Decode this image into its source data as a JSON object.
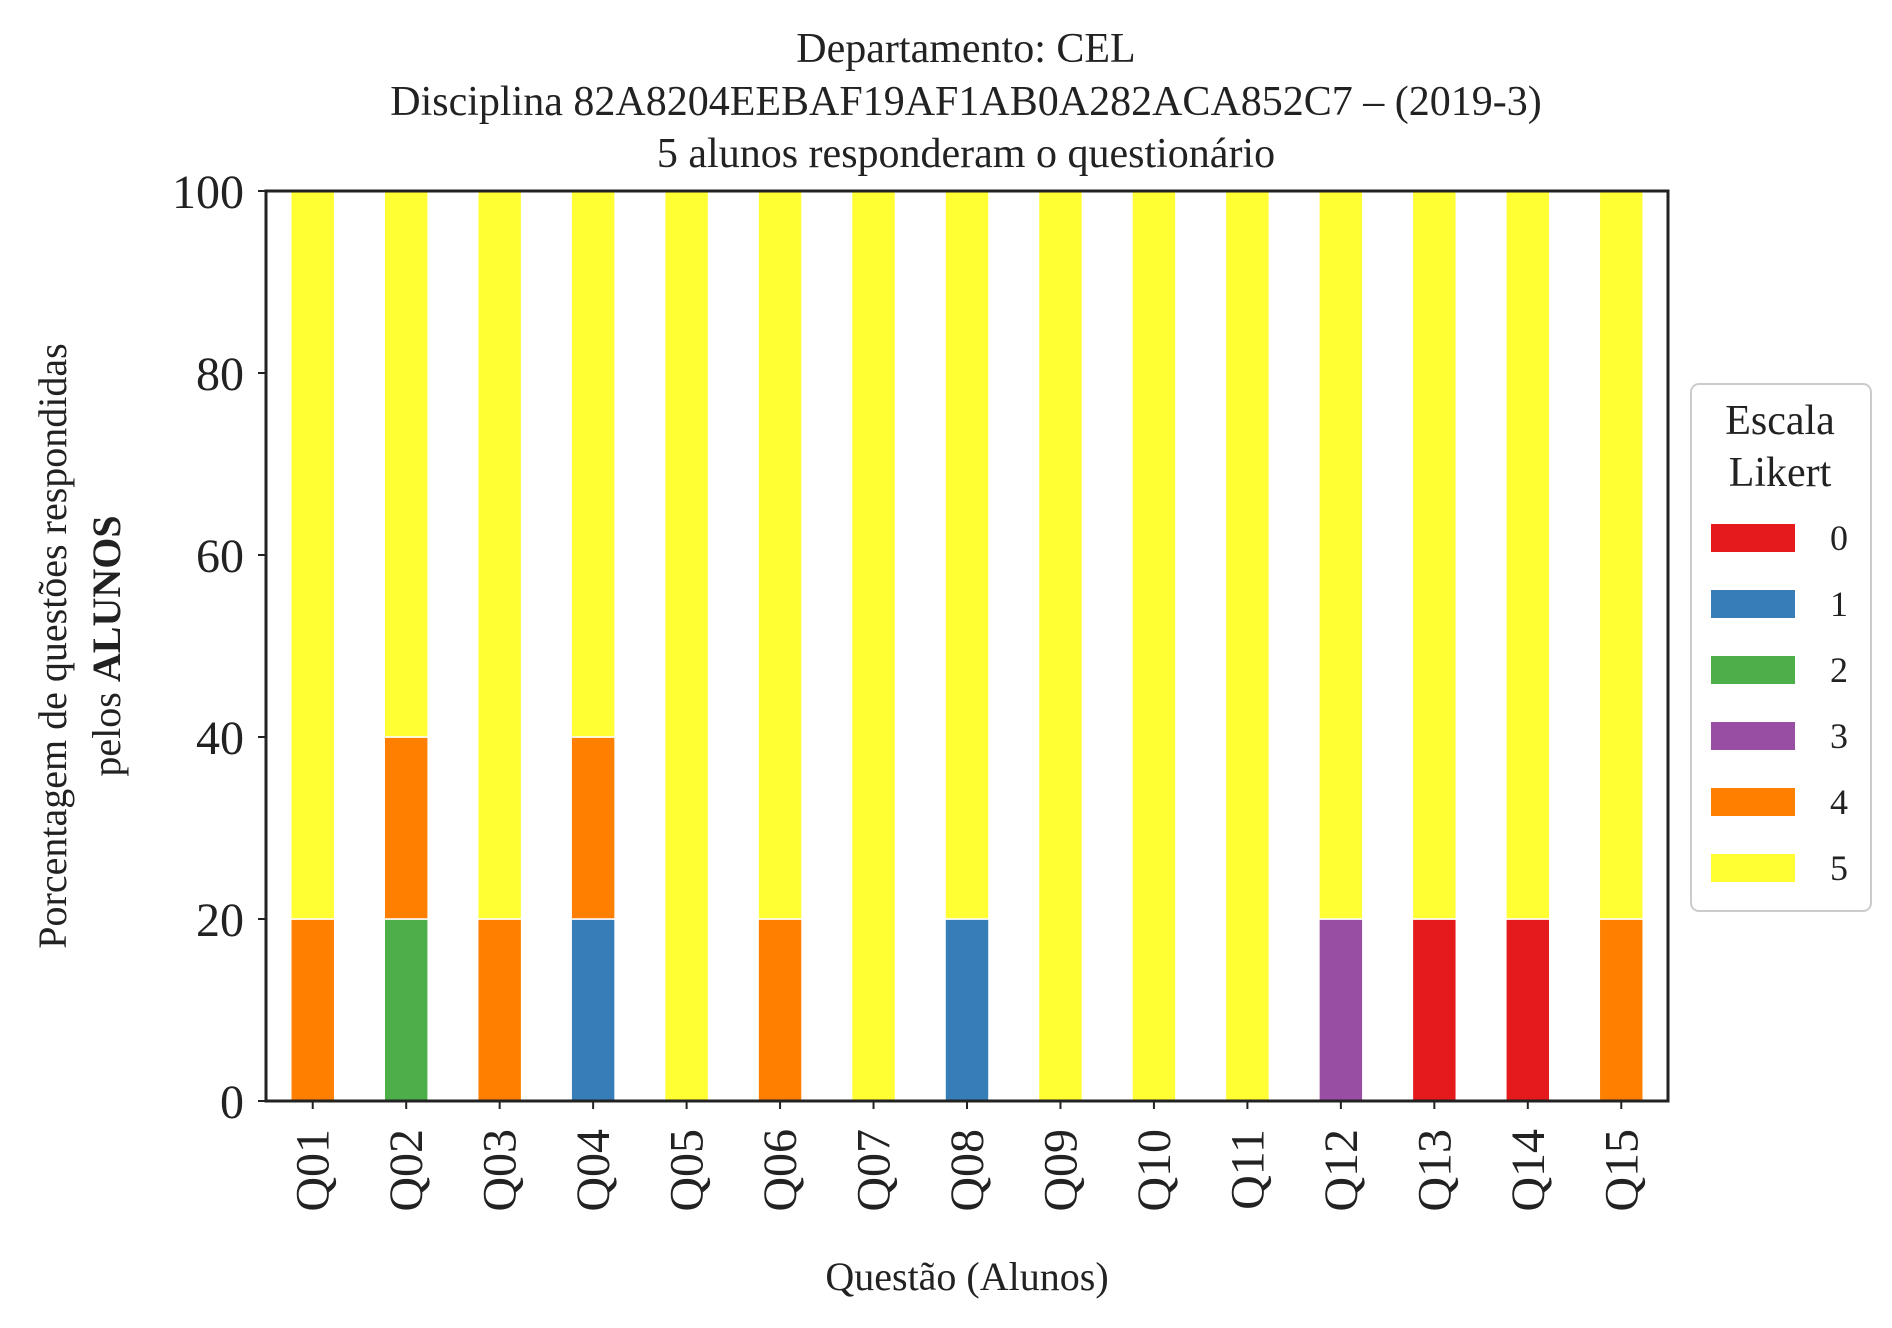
{
  "chart_data": {
    "type": "bar",
    "stacked": true,
    "title_lines": [
      "Departamento: CEL",
      "Disciplina 82A8204EEBAF19AF1AB0A282ACA852C7 – (2019-3)",
      "5 alunos responderam o questionário"
    ],
    "xlabel": "Questão (Alunos)",
    "ylabel_line1": "Porcentagem de questões respondidas",
    "ylabel_line2_prefix": "pelos ",
    "ylabel_line2_bold": "ALUNOS",
    "ylim": [
      0,
      100
    ],
    "yticks": [
      "0",
      "20",
      "40",
      "60",
      "80",
      "100"
    ],
    "grid": false,
    "legend_placement": "right-outside",
    "legend_title_lines": [
      "Escala",
      "Likert"
    ],
    "categories": [
      "Q01",
      "Q02",
      "Q03",
      "Q04",
      "Q05",
      "Q06",
      "Q07",
      "Q08",
      "Q09",
      "Q10",
      "Q11",
      "Q12",
      "Q13",
      "Q14",
      "Q15"
    ],
    "series": [
      {
        "name": "0",
        "color": "#e41a1c",
        "values": [
          0,
          0,
          0,
          0,
          0,
          0,
          0,
          0,
          0,
          0,
          0,
          0,
          20,
          20,
          0
        ]
      },
      {
        "name": "1",
        "color": "#377eb8",
        "values": [
          0,
          0,
          0,
          20,
          0,
          0,
          0,
          20,
          0,
          0,
          0,
          0,
          0,
          0,
          0
        ]
      },
      {
        "name": "2",
        "color": "#4daf4a",
        "values": [
          0,
          20,
          0,
          0,
          0,
          0,
          0,
          0,
          0,
          0,
          0,
          0,
          0,
          0,
          0
        ]
      },
      {
        "name": "3",
        "color": "#984ea3",
        "values": [
          0,
          0,
          0,
          0,
          0,
          0,
          0,
          0,
          0,
          0,
          0,
          20,
          0,
          0,
          0
        ]
      },
      {
        "name": "4",
        "color": "#ff7f00",
        "values": [
          20,
          20,
          20,
          20,
          0,
          20,
          0,
          0,
          0,
          0,
          0,
          0,
          0,
          0,
          20
        ]
      },
      {
        "name": "5",
        "color": "#ffff33",
        "values": [
          80,
          60,
          80,
          60,
          100,
          80,
          100,
          80,
          100,
          100,
          100,
          80,
          80,
          80,
          80
        ]
      }
    ]
  }
}
